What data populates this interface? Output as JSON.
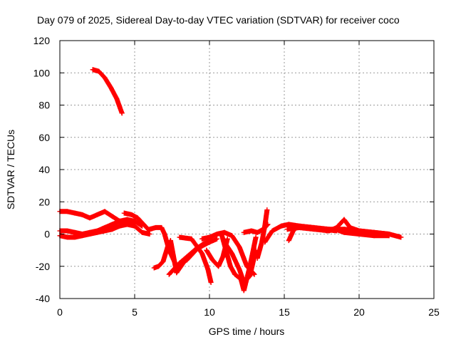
{
  "chart_data": {
    "type": "scatter",
    "title": "Day 079 of 2025, Sidereal Day-to-day VTEC variation (SDTVAR) for receiver coco",
    "xlabel": "GPS time / hours",
    "ylabel": "SDTVAR / TECUs",
    "xlim": [
      0,
      25
    ],
    "ylim": [
      -40,
      120
    ],
    "x_ticks": [
      0,
      5,
      10,
      15,
      20,
      25
    ],
    "y_ticks": [
      -40,
      -20,
      0,
      20,
      40,
      60,
      80,
      100,
      120
    ],
    "grid": true,
    "legend": "none",
    "series_color": "#ff0000",
    "marker": "plus",
    "tracks": [
      {
        "name": "track-a",
        "x": [
          2.2,
          2.6,
          3.0,
          3.4,
          3.8,
          4.15
        ],
        "y": [
          102,
          101,
          97,
          91,
          84,
          75
        ]
      },
      {
        "name": "track-b",
        "x": [
          0.0,
          0.5,
          1.0,
          1.5,
          2.0,
          2.5,
          3.0,
          3.5,
          4.0,
          4.5,
          5.0,
          5.5,
          6.0
        ],
        "y": [
          14,
          14,
          13,
          12,
          10,
          12,
          14,
          11,
          8,
          7,
          5,
          1,
          0
        ]
      },
      {
        "name": "track-c",
        "x": [
          0.0,
          0.5,
          1.0,
          1.5,
          2.0,
          2.5,
          3.0,
          3.5,
          4.0,
          4.5,
          5.0,
          5.5
        ],
        "y": [
          2,
          2,
          1,
          0,
          1,
          2,
          4,
          6,
          8,
          9,
          8,
          5
        ]
      },
      {
        "name": "track-d",
        "x": [
          0.0,
          0.5,
          1.0,
          1.5,
          2.0,
          2.5,
          3.0,
          3.5,
          4.0,
          4.5,
          5.0
        ],
        "y": [
          -1,
          -2,
          -2,
          -1,
          0,
          1,
          2,
          3,
          5,
          6,
          5
        ]
      },
      {
        "name": "track-e",
        "x": [
          4.3,
          4.8,
          5.2,
          5.6,
          6.0
        ],
        "y": [
          13,
          12,
          10,
          6,
          2
        ]
      },
      {
        "name": "track-f",
        "x": [
          6.0,
          6.4,
          6.8,
          7.0,
          7.3,
          7.8,
          8.5,
          9.3,
          10.0
        ],
        "y": [
          3,
          4,
          4,
          0,
          -10,
          -20,
          -16,
          -8,
          -4
        ]
      },
      {
        "name": "track-g",
        "x": [
          6.3,
          6.6,
          6.9,
          7.2,
          7.4,
          7.8,
          8.4,
          9.0,
          9.6,
          10.0
        ],
        "y": [
          -21,
          -20,
          -17,
          -8,
          -4,
          -24,
          -16,
          -10,
          -6,
          -5
        ]
      },
      {
        "name": "track-h",
        "x": [
          7.3,
          8.0,
          9.0,
          10.0,
          10.5
        ],
        "y": [
          -25,
          -18,
          -10,
          -5,
          -3
        ]
      },
      {
        "name": "track-i",
        "x": [
          8.0,
          8.8,
          9.5,
          9.9,
          10.1
        ],
        "y": [
          -2,
          -3,
          -12,
          -22,
          -30
        ]
      },
      {
        "name": "track-j",
        "x": [
          9.8,
          10.2,
          10.6,
          10.9,
          11.2
        ],
        "y": [
          -10,
          -16,
          -20,
          -14,
          -3
        ]
      },
      {
        "name": "track-k",
        "x": [
          9.5,
          10.0,
          10.5,
          11.0,
          11.5,
          12.0,
          12.5,
          13.0
        ],
        "y": [
          -3,
          -2,
          0,
          1,
          -1,
          -8,
          -20,
          -25
        ]
      },
      {
        "name": "track-l",
        "x": [
          10.8,
          11.1,
          11.4,
          11.7,
          12.1,
          12.3,
          12.7,
          13.1
        ],
        "y": [
          0,
          -10,
          -20,
          -25,
          -28,
          -35,
          -20,
          -2
        ]
      },
      {
        "name": "track-m",
        "x": [
          11.0,
          11.5,
          12.0,
          12.3,
          12.7,
          13.1
        ],
        "y": [
          -5,
          -12,
          -22,
          -30,
          -26,
          -10
        ]
      },
      {
        "name": "track-n",
        "x": [
          12.3,
          12.8,
          13.2,
          13.6,
          13.9
        ],
        "y": [
          1,
          2,
          1,
          3,
          6
        ]
      },
      {
        "name": "track-o",
        "x": [
          13.2,
          13.5,
          13.7,
          13.85
        ],
        "y": [
          -15,
          -5,
          5,
          15
        ]
      },
      {
        "name": "track-p",
        "x": [
          13.7,
          14.2,
          14.8,
          15.3,
          16.0,
          17.0,
          18.0,
          19.0,
          20.0,
          21.0,
          22.0,
          22.8
        ],
        "y": [
          -5,
          2,
          5,
          6,
          5,
          4,
          3,
          3,
          2,
          1,
          0,
          -2
        ]
      },
      {
        "name": "track-q",
        "x": [
          15.2,
          16.0,
          17.0,
          18.0,
          18.5,
          19.0,
          19.4,
          20.0,
          21.0,
          22.0
        ],
        "y": [
          3,
          4,
          3,
          2,
          4,
          9,
          4,
          2,
          1,
          0
        ]
      },
      {
        "name": "track-r",
        "x": [
          15.3,
          15.6,
          15.9,
          16.5,
          17.5,
          18.5
        ],
        "y": [
          -4,
          2,
          5,
          4,
          3,
          2
        ]
      },
      {
        "name": "track-s",
        "x": [
          17.8,
          18.4,
          19.0,
          20.0,
          21.0,
          22.0
        ],
        "y": [
          2,
          3,
          1,
          0,
          -1,
          -1
        ]
      }
    ]
  }
}
